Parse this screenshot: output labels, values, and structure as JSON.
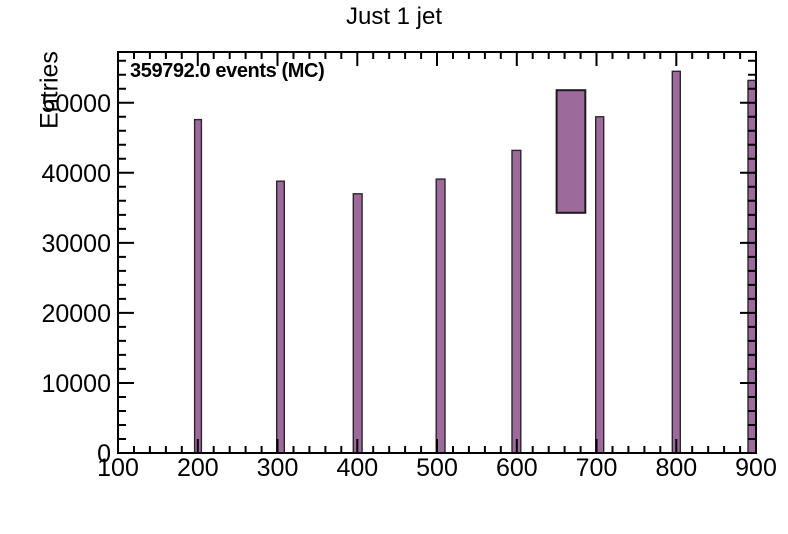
{
  "chart_data": {
    "type": "bar",
    "title": "Just 1 jet",
    "ylabel": "Entries",
    "xlabel": "",
    "annotation": "359792.0 events (MC)",
    "xlim": [
      100,
      900
    ],
    "ylim": [
      0,
      57250
    ],
    "x_major_ticks": [
      100,
      200,
      300,
      400,
      500,
      600,
      700,
      800,
      900
    ],
    "x_minor_step": 20,
    "y_major_ticks": [
      0,
      10000,
      20000,
      30000,
      40000,
      50000
    ],
    "y_minor_step": 2000,
    "grid": false,
    "legend": false,
    "x_centers": [
      200,
      300,
      400,
      500,
      600,
      700,
      800,
      900
    ],
    "values": [
      47600,
      38800,
      37000,
      39100,
      43200,
      48000,
      54500,
      53200
    ],
    "bars": [
      {
        "x0": 196.0,
        "x1": 204.5,
        "value": 47600
      },
      {
        "x0": 299.0,
        "x1": 308.5,
        "value": 38800
      },
      {
        "x0": 395.0,
        "x1": 406.0,
        "value": 37000
      },
      {
        "x0": 499.0,
        "x1": 510.0,
        "value": 39100
      },
      {
        "x0": 594.0,
        "x1": 605.0,
        "value": 43200
      },
      {
        "x0": 699.0,
        "x1": 709.0,
        "value": 48000
      },
      {
        "x0": 795.0,
        "x1": 805.0,
        "value": 54500
      },
      {
        "x0": 890.0,
        "x1": 900.0,
        "value": 53200
      }
    ],
    "error_box": {
      "x0": 650,
      "x1": 686,
      "y_low": 34300,
      "y_high": 51800
    },
    "colors": {
      "bar_fill": "#9c6b9b",
      "bar_edge": "#2e242e",
      "axis": "#000000",
      "text": "#000000",
      "background": "#ffffff"
    }
  }
}
